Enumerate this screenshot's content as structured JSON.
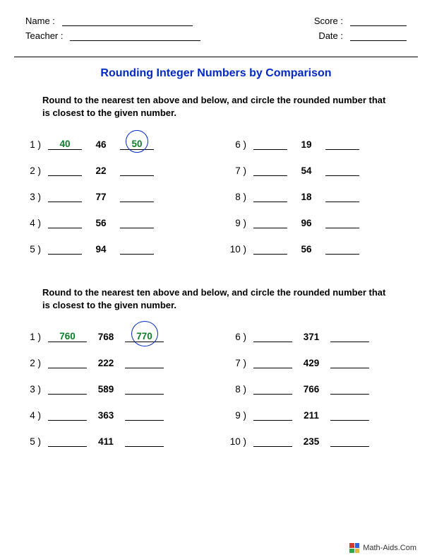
{
  "header": {
    "name_label": "Name :",
    "teacher_label": "Teacher :",
    "score_label": "Score :",
    "date_label": "Date :"
  },
  "title": "Rounding Integer Numbers by Comparison",
  "sections": [
    {
      "instruction": "Round to the nearest ten above and below, and circle the rounded number that is closest to the given number.",
      "left": [
        {
          "n": "1 )",
          "below": "40",
          "given": "46",
          "above": "50",
          "circle": "above"
        },
        {
          "n": "2 )",
          "below": "",
          "given": "22",
          "above": ""
        },
        {
          "n": "3 )",
          "below": "",
          "given": "77",
          "above": ""
        },
        {
          "n": "4 )",
          "below": "",
          "given": "56",
          "above": ""
        },
        {
          "n": "5 )",
          "below": "",
          "given": "94",
          "above": ""
        }
      ],
      "right": [
        {
          "n": "6 )",
          "below": "",
          "given": "19",
          "above": ""
        },
        {
          "n": "7 )",
          "below": "",
          "given": "54",
          "above": ""
        },
        {
          "n": "8 )",
          "below": "",
          "given": "18",
          "above": ""
        },
        {
          "n": "9 )",
          "below": "",
          "given": "96",
          "above": ""
        },
        {
          "n": "10 )",
          "below": "",
          "given": "56",
          "above": ""
        }
      ],
      "wide": false
    },
    {
      "instruction": "Round to the nearest ten above and below, and circle the rounded number that is closest to the given number.",
      "left": [
        {
          "n": "1 )",
          "below": "760",
          "given": "768",
          "above": "770",
          "circle": "above"
        },
        {
          "n": "2 )",
          "below": "",
          "given": "222",
          "above": ""
        },
        {
          "n": "3 )",
          "below": "",
          "given": "589",
          "above": ""
        },
        {
          "n": "4 )",
          "below": "",
          "given": "363",
          "above": ""
        },
        {
          "n": "5 )",
          "below": "",
          "given": "411",
          "above": ""
        }
      ],
      "right": [
        {
          "n": "6 )",
          "below": "",
          "given": "371",
          "above": ""
        },
        {
          "n": "7 )",
          "below": "",
          "given": "429",
          "above": ""
        },
        {
          "n": "8 )",
          "below": "",
          "given": "766",
          "above": ""
        },
        {
          "n": "9 )",
          "below": "",
          "given": "211",
          "above": ""
        },
        {
          "n": "10 )",
          "below": "",
          "given": "235",
          "above": ""
        }
      ],
      "wide": true
    }
  ],
  "footer": {
    "text": "Math-Aids.Com"
  },
  "colors": {
    "title": "#0029c5",
    "answer": "#0a7d28",
    "circle": "#0029c5",
    "text": "#000000",
    "background": "#ffffff"
  }
}
